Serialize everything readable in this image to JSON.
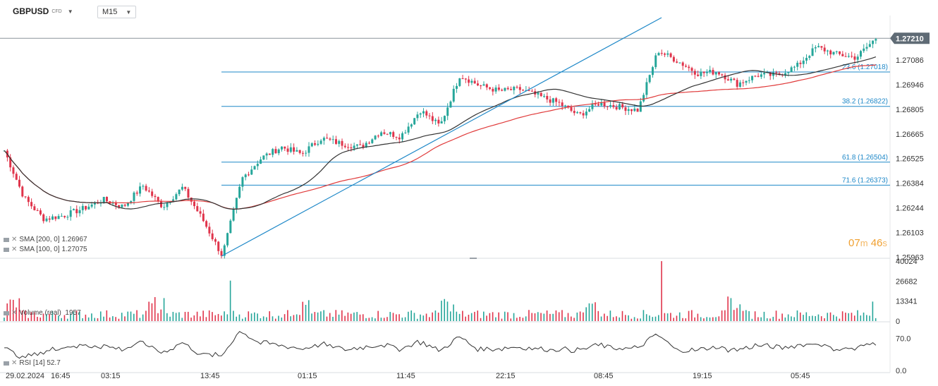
{
  "header": {
    "symbol": "GBPUSD",
    "instrument_type": "CFD",
    "timeframe": "M15"
  },
  "indicators": {
    "sma200": {
      "label": "SMA [200, 0]",
      "value": "1.26967",
      "color": "#333333"
    },
    "sma100": {
      "label": "SMA [100, 0]",
      "value": "1.27075",
      "color": "#e03a3a"
    },
    "volume": {
      "label": "Volume (real)",
      "value": "1957"
    },
    "rsi": {
      "label": "RSI [14]",
      "value": "52.7"
    }
  },
  "timer": {
    "minutes": "07",
    "m": "m",
    "seconds": "46",
    "s": "s"
  },
  "colors": {
    "up": "#26a69a",
    "down": "#e0344b",
    "fib": "#1e88c8",
    "current_price_bg": "#5f6b75"
  },
  "chart_data": [
    {
      "type": "candlestick",
      "current_price": "1.27210",
      "y_axis_ticks": [
        "1.27086",
        "1.26946",
        "1.26805",
        "1.26665",
        "1.26525",
        "1.26384",
        "1.26244",
        "1.26103",
        "1.25963"
      ],
      "ylim": [
        1.2596,
        1.2734
      ],
      "x_tick_labels": [
        "29.02.2024",
        "16:45",
        "03:15",
        "13:45",
        "01:15",
        "11:45",
        "22:15",
        "08:45",
        "19:15",
        "05:45"
      ],
      "close_anchors": [
        1.2657,
        1.263,
        1.2618,
        1.262,
        1.2624,
        1.2629,
        1.2625,
        1.2637,
        1.2625,
        1.2636,
        1.2618,
        1.2597,
        1.2641,
        1.2653,
        1.2659,
        1.2655,
        1.2664,
        1.2661,
        1.2659,
        1.2668,
        1.2665,
        1.268,
        1.2671,
        1.27,
        1.2694,
        1.2691,
        1.2692,
        1.2688,
        1.2684,
        1.2677,
        1.2684,
        1.2682,
        1.268,
        1.2714,
        1.2708,
        1.2701,
        1.2702,
        1.2695,
        1.27,
        1.27,
        1.2705,
        1.2716,
        1.2712,
        1.271,
        1.2721
      ],
      "fib_levels": [
        {
          "label": "23.6 (1.27018)",
          "value": 1.27018
        },
        {
          "label": "38.2 (1.26822)",
          "value": 1.26822
        },
        {
          "label": "61.8 (1.26504)",
          "value": 1.26504
        },
        {
          "label": "71.6 (1.26373)",
          "value": 1.26373
        }
      ],
      "trend_line": {
        "from": 1.25968,
        "to": 1.27328
      }
    },
    {
      "type": "bar",
      "title": "Volume (real)",
      "y_axis_ticks": [
        "40024",
        "26682",
        "13341",
        "0"
      ],
      "ylim": [
        0,
        40024
      ]
    },
    {
      "type": "line",
      "title": "RSI [14]",
      "y_axis_ticks": [
        "70.0",
        "0.0"
      ],
      "ylim": [
        0,
        100
      ]
    }
  ]
}
